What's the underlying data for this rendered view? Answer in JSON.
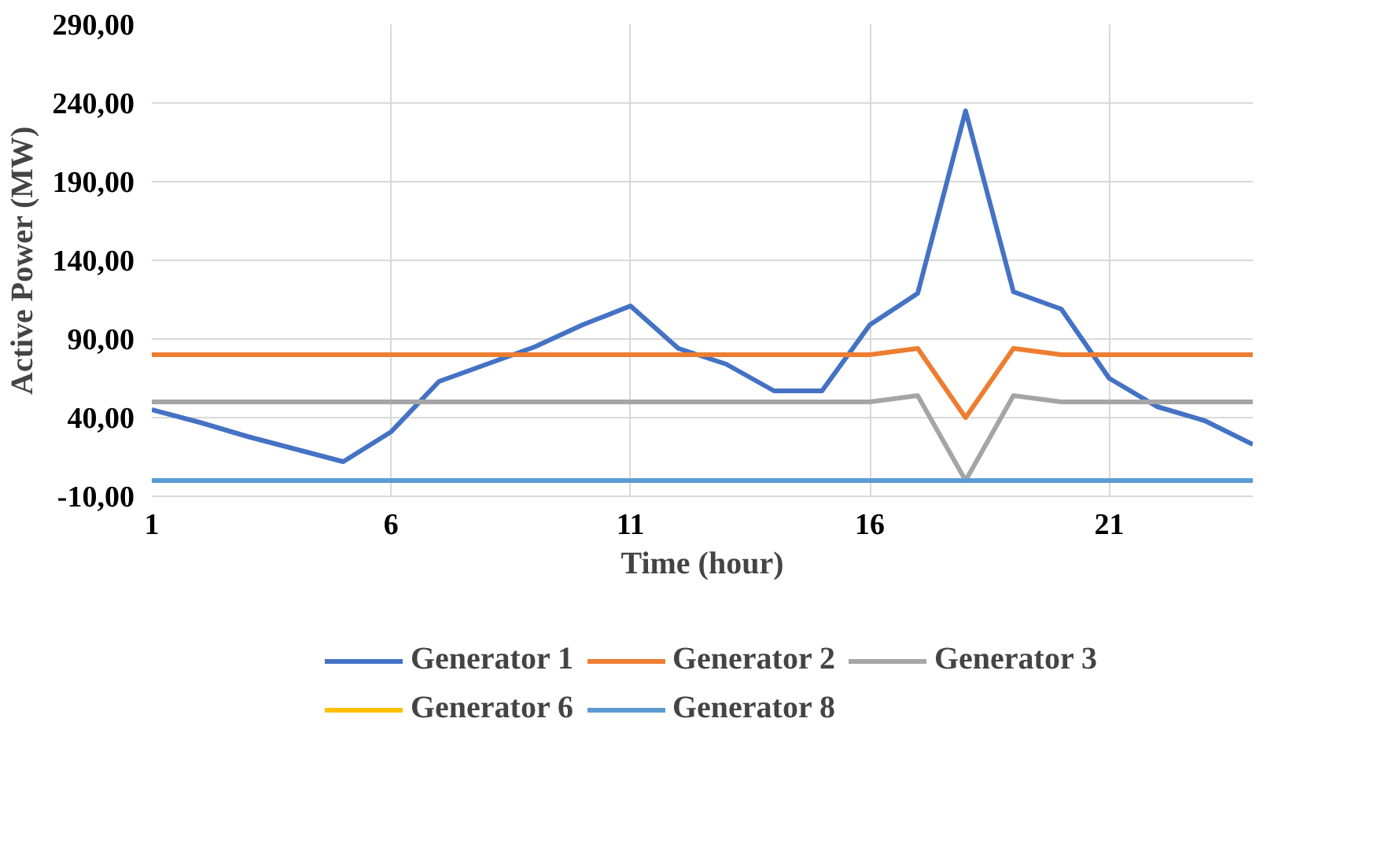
{
  "chart_data": {
    "type": "line",
    "xlabel": "Time (hour)",
    "ylabel": "Active Power (MW)",
    "x": [
      1,
      2,
      3,
      4,
      5,
      6,
      7,
      8,
      9,
      10,
      11,
      12,
      13,
      14,
      15,
      16,
      17,
      18,
      19,
      20,
      21,
      22,
      23,
      24
    ],
    "series": [
      {
        "name": "Generator 1",
        "color": "#4472c4",
        "values": [
          45,
          37,
          28,
          20,
          12,
          31,
          63,
          74,
          85,
          99,
          111,
          84,
          74,
          57,
          57,
          99,
          119,
          235,
          120,
          109,
          65,
          47,
          38,
          23
        ]
      },
      {
        "name": "Generator 2",
        "color": "#ed7d31",
        "values": [
          80,
          80,
          80,
          80,
          80,
          80,
          80,
          80,
          80,
          80,
          80,
          80,
          80,
          80,
          80,
          80,
          84,
          40,
          84,
          80,
          80,
          80,
          80,
          80
        ]
      },
      {
        "name": "Generator 3",
        "color": "#a5a5a5",
        "values": [
          50,
          50,
          50,
          50,
          50,
          50,
          50,
          50,
          50,
          50,
          50,
          50,
          50,
          50,
          50,
          50,
          54,
          0,
          54,
          50,
          50,
          50,
          50,
          50
        ]
      },
      {
        "name": "Generator 6",
        "color": "#ffc000",
        "values": [
          null,
          null,
          null,
          null,
          null,
          null,
          null,
          null,
          null,
          null,
          null,
          null,
          null,
          null,
          null,
          null,
          null,
          null,
          null,
          null,
          null,
          null,
          null,
          null
        ]
      },
      {
        "name": "Generator 8",
        "color": "#5b9bd5",
        "values": [
          0,
          0,
          0,
          0,
          0,
          0,
          0,
          0,
          0,
          0,
          0,
          0,
          0,
          0,
          0,
          0,
          0,
          0,
          0,
          0,
          0,
          0,
          0,
          0
        ]
      }
    ],
    "xlim": [
      1,
      24
    ],
    "xticks": [
      1,
      6,
      11,
      16,
      21
    ],
    "ylim": [
      -10,
      290
    ],
    "yticks": [
      {
        "value": -10,
        "label": "-10,00"
      },
      {
        "value": 40,
        "label": "40,00"
      },
      {
        "value": 90,
        "label": "90,00"
      },
      {
        "value": 140,
        "label": "140,00"
      },
      {
        "value": 190,
        "label": "190,00"
      },
      {
        "value": 240,
        "label": "240,00"
      },
      {
        "value": 290,
        "label": "290,00"
      }
    ],
    "grid": true,
    "legend": "bottom",
    "marker": "none",
    "line_style": "solid"
  }
}
